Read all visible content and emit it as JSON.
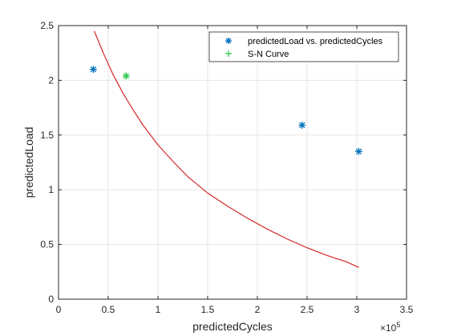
{
  "chart_data": {
    "type": "scatter",
    "title": "",
    "xlabel": "predictedCycles",
    "ylabel": "predictedLoad",
    "xlim": [
      0,
      3.5
    ],
    "ylim": [
      0,
      2.5
    ],
    "x_exponent_label": "×10",
    "x_exponent_power": "5",
    "x_ticks": [
      0,
      0.5,
      1,
      1.5,
      2,
      2.5,
      3,
      3.5
    ],
    "x_tick_labels": [
      "0",
      "0.5",
      "1",
      "1.5",
      "2",
      "2.5",
      "3",
      "3.5"
    ],
    "y_ticks": [
      0,
      0.5,
      1,
      1.5,
      2,
      2.5
    ],
    "y_tick_labels": [
      "0",
      "0.5",
      "1",
      "1.5",
      "2",
      "2.5"
    ],
    "grid": true,
    "legend_position": "top-right",
    "colors": {
      "data_points": "#0072BD",
      "highlight_point": "#2DC84D",
      "curve": "#D62728",
      "grid": "#e6e6e6",
      "axis": "#262626"
    },
    "series": [
      {
        "name": "predictedLoad vs. predictedCycles",
        "kind": "scatter",
        "marker": "asterisk",
        "points": [
          {
            "x": 0.35,
            "y": 2.1
          },
          {
            "x": 2.45,
            "y": 1.59
          },
          {
            "x": 3.02,
            "y": 1.35
          }
        ]
      },
      {
        "name": "S-N Curve",
        "kind": "line",
        "legend_marker": "plus",
        "points": [
          {
            "x": 0.36,
            "y": 2.45
          },
          {
            "x": 0.45,
            "y": 2.25
          },
          {
            "x": 0.55,
            "y": 2.05
          },
          {
            "x": 0.65,
            "y": 1.88
          },
          {
            "x": 0.75,
            "y": 1.73
          },
          {
            "x": 0.85,
            "y": 1.59
          },
          {
            "x": 1.0,
            "y": 1.41
          },
          {
            "x": 1.15,
            "y": 1.26
          },
          {
            "x": 1.3,
            "y": 1.12
          },
          {
            "x": 1.5,
            "y": 0.97
          },
          {
            "x": 1.7,
            "y": 0.85
          },
          {
            "x": 1.9,
            "y": 0.74
          },
          {
            "x": 2.1,
            "y": 0.64
          },
          {
            "x": 2.3,
            "y": 0.55
          },
          {
            "x": 2.5,
            "y": 0.47
          },
          {
            "x": 2.7,
            "y": 0.4
          },
          {
            "x": 2.9,
            "y": 0.34
          },
          {
            "x": 3.02,
            "y": 0.29
          }
        ]
      },
      {
        "kind": "scatter",
        "marker": "asterisk",
        "points": [
          {
            "x": 0.68,
            "y": 2.04
          }
        ]
      }
    ]
  }
}
